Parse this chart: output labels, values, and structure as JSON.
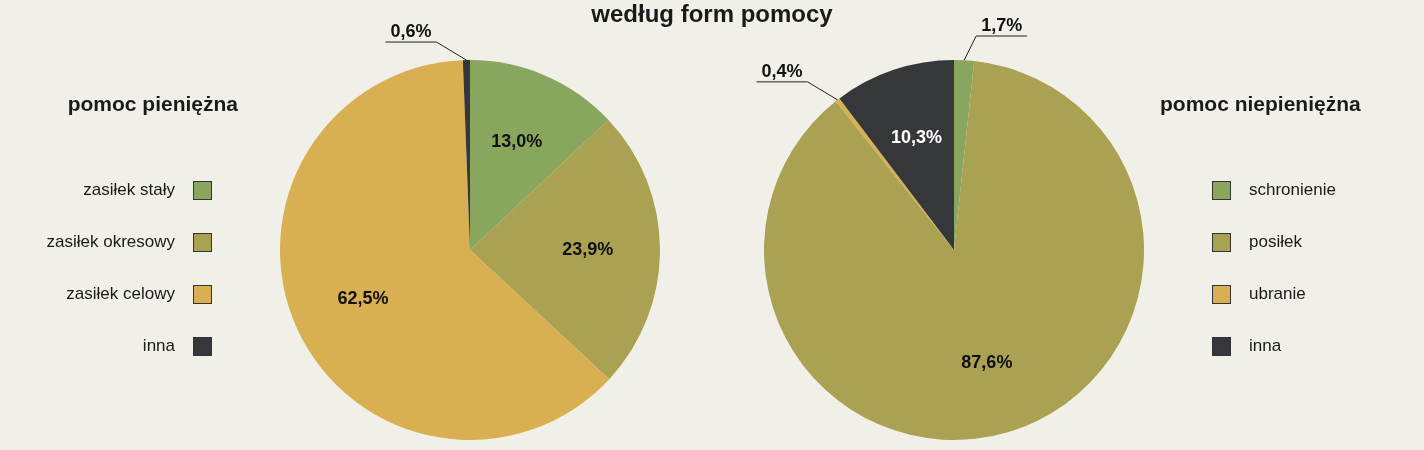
{
  "chart_data": [
    {
      "type": "pie",
      "title": "według form pomocy",
      "legend_title": "pomoc pieniężna",
      "legend": "left",
      "categories": [
        "zasiłek stały",
        "zasiłek okresowy",
        "zasiłek celowy",
        "inna"
      ],
      "values": [
        13.0,
        23.9,
        62.5,
        0.6
      ],
      "colors": [
        "#88a65e",
        "#aba153",
        "#d9b051",
        "#36373b"
      ],
      "value_labels": [
        "13,0%",
        "23,9%",
        "62,5%",
        "0,6%"
      ]
    },
    {
      "type": "pie",
      "legend_title": "pomoc niepieniężna",
      "legend": "right",
      "categories": [
        "schronienie",
        "posiłek",
        "ubranie",
        "inna"
      ],
      "values": [
        1.7,
        87.6,
        0.4,
        10.3
      ],
      "colors": [
        "#88a65e",
        "#aba153",
        "#d9b051",
        "#36373b"
      ],
      "value_labels": [
        "1,7%",
        "87,6%",
        "0,4%",
        "10,3%"
      ]
    }
  ]
}
